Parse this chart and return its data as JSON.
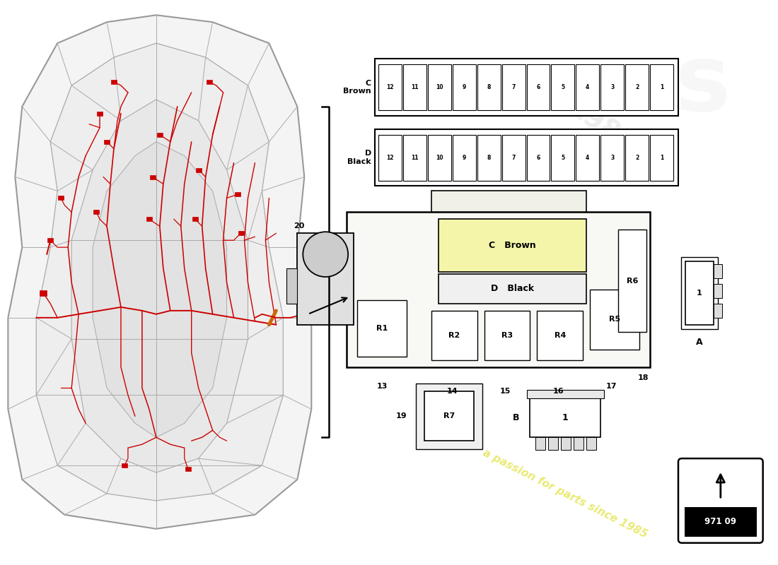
{
  "bg_color": "#ffffff",
  "part_number": "971 09",
  "fuse_numbers": [
    12,
    11,
    10,
    9,
    8,
    7,
    6,
    5,
    4,
    3,
    2,
    1
  ],
  "watermark_text": "a passion for parts since 1985",
  "watermark_color": "#d8d800",
  "watermark_alpha": 0.55,
  "red_wire": "#cc0000",
  "orange_wire": "#cc6600",
  "body_fc": "#f4f4f4",
  "body_ec": "#999999",
  "panel_ec": "#aaaaaa",
  "relay_box_fc": "#f8f8f4",
  "C_brown_fc": "#f5f5aa",
  "note1985_color": "#e0e000"
}
